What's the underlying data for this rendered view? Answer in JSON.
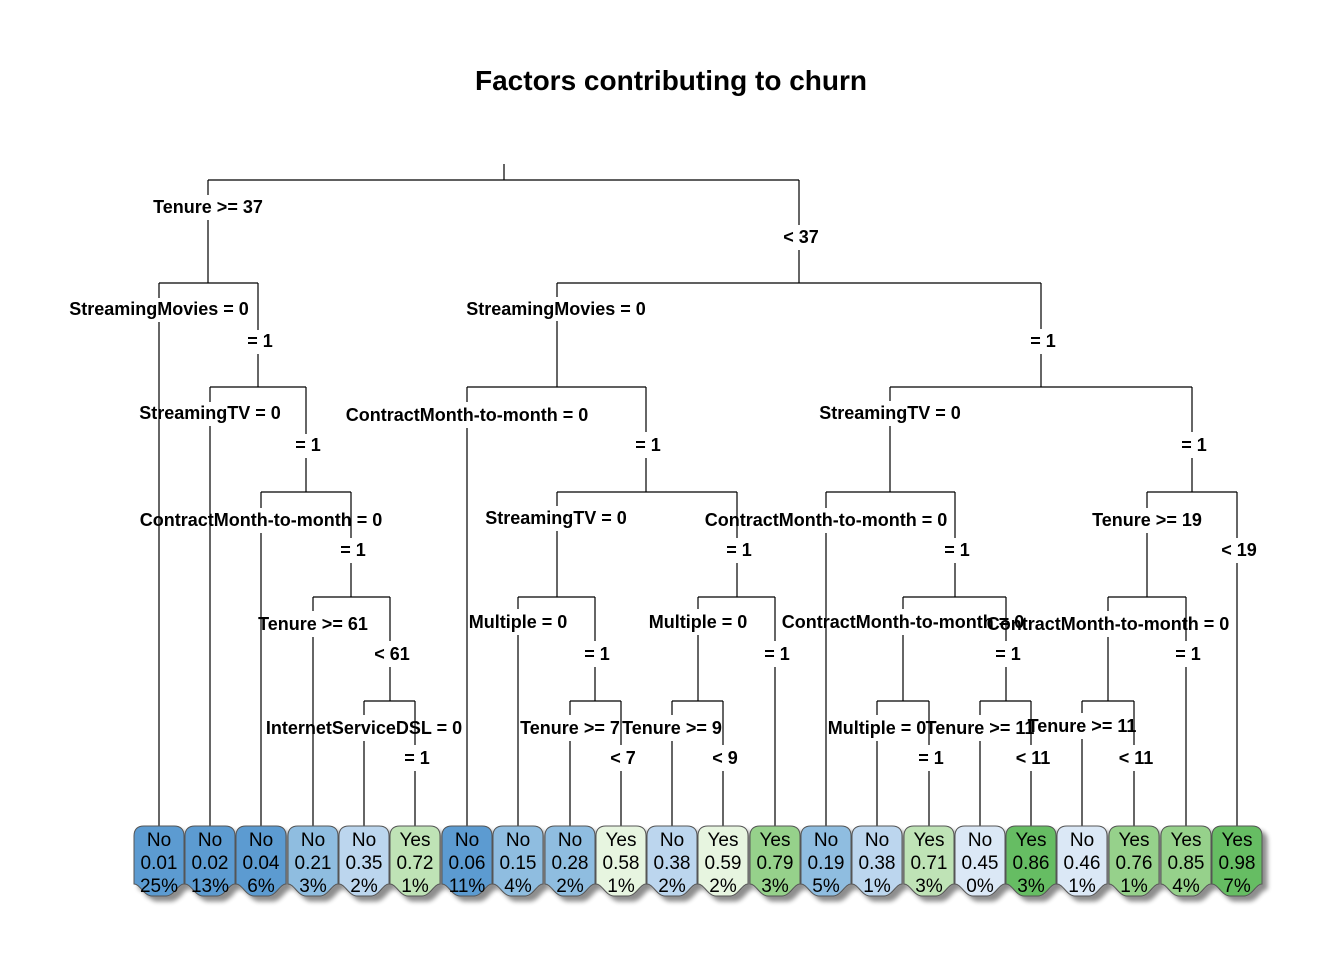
{
  "title": "Factors contributing to churn",
  "colors": {
    "blue_dark": "#5b9bd1",
    "blue_mid": "#8fbde0",
    "blue_light": "#bcd6ee",
    "blue_pale": "#dbe8f6",
    "green_pale": "#e7f5e0",
    "green_light": "#bfe3b6",
    "green_mid": "#96d18b",
    "green_dark": "#66bd63"
  },
  "split_labels": [
    "Tenure >= 37",
    "< 37",
    "StreamingMovies = 0",
    "= 1",
    "StreamingTV = 0",
    "= 1",
    "ContractMonth-to-month = 0",
    "= 1",
    "Tenure >= 61",
    "< 61",
    "InternetServiceDSL = 0",
    "= 1",
    "StreamingMovies = 0",
    "= 1",
    "ContractMonth-to-month = 0",
    "= 1",
    "StreamingTV = 0",
    "= 1",
    "Multiple = 0",
    "= 1",
    "Tenure >= 7",
    "< 7",
    "ContractMonth-to-month = 0",
    "= 1",
    "Multiple = 0",
    "= 1",
    "Tenure >= 9",
    "< 9",
    "StreamingTV = 0",
    "= 1",
    "ContractMonth-to-month = 0",
    "= 1",
    "Multiple = 0",
    "= 1",
    "Tenure >= 11",
    "< 11",
    "Tenure >= 19",
    "< 19",
    "ContractMonth-to-month = 0",
    "= 1",
    "Tenure >= 11",
    "< 11",
    "Multiple = 0",
    "= 1"
  ],
  "leaves": [
    {
      "class": "No",
      "prob": "0.01",
      "pct": "25%",
      "color": "blue_dark"
    },
    {
      "class": "No",
      "prob": "0.02",
      "pct": "13%",
      "color": "blue_dark"
    },
    {
      "class": "No",
      "prob": "0.04",
      "pct": "6%",
      "color": "blue_dark"
    },
    {
      "class": "No",
      "prob": "0.21",
      "pct": "3%",
      "color": "blue_mid"
    },
    {
      "class": "No",
      "prob": "0.35",
      "pct": "2%",
      "color": "blue_light"
    },
    {
      "class": "Yes",
      "prob": "0.72",
      "pct": "1%",
      "color": "green_light"
    },
    {
      "class": "No",
      "prob": "0.06",
      "pct": "11%",
      "color": "blue_dark"
    },
    {
      "class": "No",
      "prob": "0.15",
      "pct": "4%",
      "color": "blue_mid"
    },
    {
      "class": "No",
      "prob": "0.28",
      "pct": "2%",
      "color": "blue_mid"
    },
    {
      "class": "Yes",
      "prob": "0.58",
      "pct": "1%",
      "color": "green_pale"
    },
    {
      "class": "No",
      "prob": "0.38",
      "pct": "2%",
      "color": "blue_light"
    },
    {
      "class": "Yes",
      "prob": "0.59",
      "pct": "2%",
      "color": "green_pale"
    },
    {
      "class": "Yes",
      "prob": "0.79",
      "pct": "3%",
      "color": "green_mid"
    },
    {
      "class": "No",
      "prob": "0.19",
      "pct": "5%",
      "color": "blue_mid"
    },
    {
      "class": "No",
      "prob": "0.38",
      "pct": "1%",
      "color": "blue_light"
    },
    {
      "class": "Yes",
      "prob": "0.71",
      "pct": "3%",
      "color": "green_light"
    },
    {
      "class": "No",
      "prob": "0.45",
      "pct": "0%",
      "color": "blue_pale"
    },
    {
      "class": "Yes",
      "prob": "0.86",
      "pct": "3%",
      "color": "green_dark"
    },
    {
      "class": "No",
      "prob": "0.46",
      "pct": "1%",
      "color": "blue_pale"
    },
    {
      "class": "Yes",
      "prob": "0.76",
      "pct": "1%",
      "color": "green_mid"
    },
    {
      "class": "Yes",
      "prob": "0.85",
      "pct": "4%",
      "color": "green_mid"
    },
    {
      "class": "Yes",
      "prob": "0.98",
      "pct": "7%",
      "color": "green_dark"
    }
  ]
}
